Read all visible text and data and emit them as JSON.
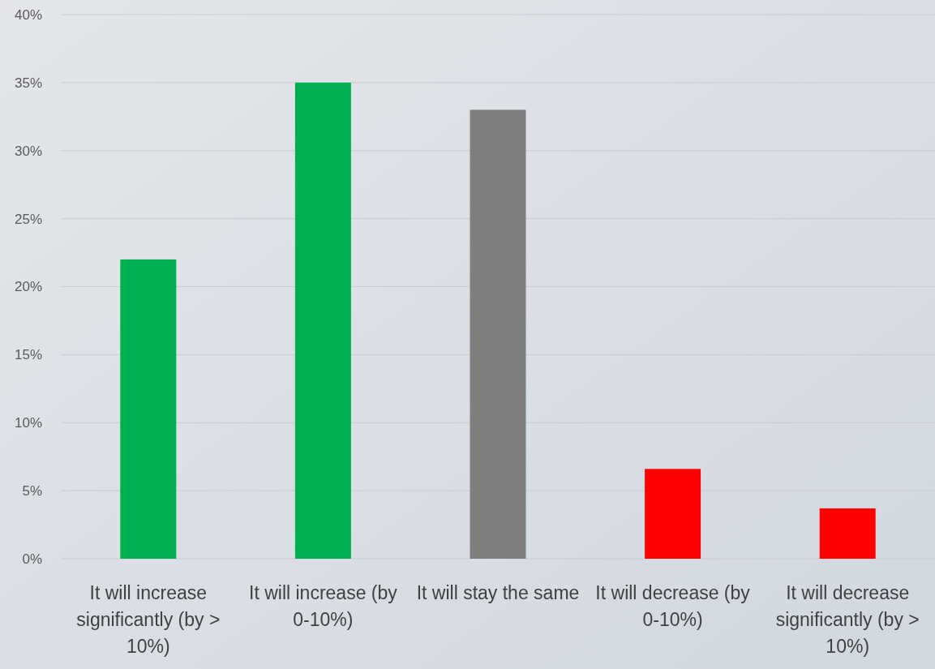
{
  "chart_data": {
    "type": "bar",
    "categories": [
      "It will increase significantly (by > 10%)",
      "It will increase (by 0-10%)",
      "It will stay the same",
      "It will decrease (by 0-10%)",
      "It will decrease significantly (by > 10%)"
    ],
    "values": [
      22,
      35,
      33,
      6.6,
      3.7
    ],
    "colors": [
      "#00b050",
      "#00b050",
      "#7f7f7f",
      "#ff0000",
      "#ff0000"
    ],
    "ylim": [
      0,
      40
    ],
    "yticks": [
      {
        "value": 0,
        "label": "0%"
      },
      {
        "value": 5,
        "label": "5%"
      },
      {
        "value": 10,
        "label": "10%"
      },
      {
        "value": 15,
        "label": "15%"
      },
      {
        "value": 20,
        "label": "20%"
      },
      {
        "value": 25,
        "label": "25%"
      },
      {
        "value": 30,
        "label": "30%"
      },
      {
        "value": 35,
        "label": "35%"
      },
      {
        "value": 40,
        "label": "40%"
      }
    ],
    "grid": "y"
  }
}
